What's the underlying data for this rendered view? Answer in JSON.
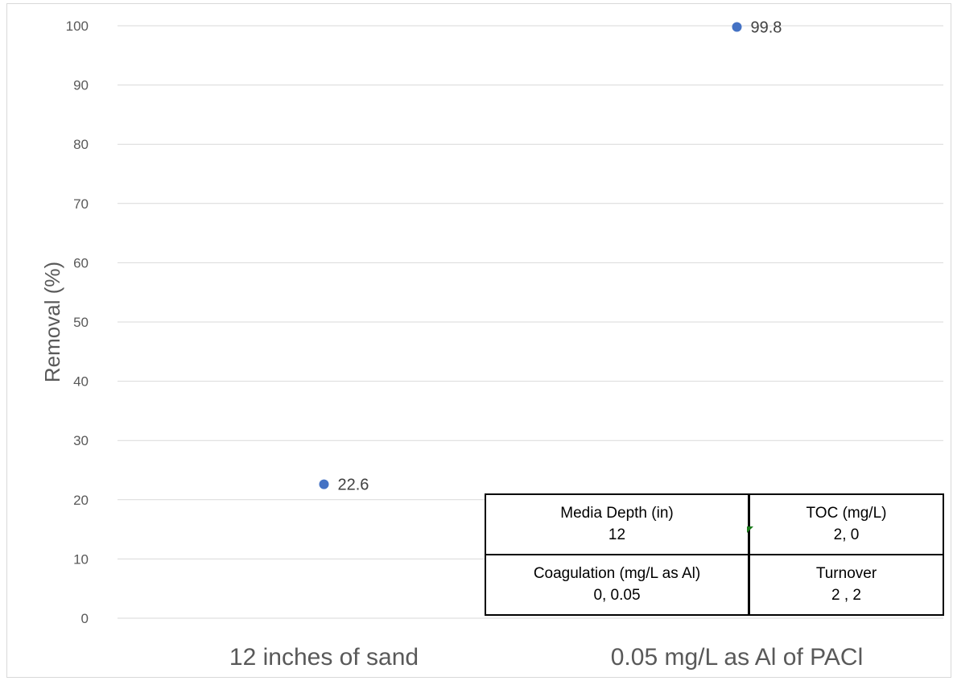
{
  "chart_data": {
    "type": "scatter",
    "categories": [
      "12 inches of sand",
      "0.05 mg/L as Al of PACl"
    ],
    "values": [
      22.6,
      99.8
    ],
    "data_labels": [
      "22.6",
      "99.8"
    ],
    "title": "",
    "xlabel": "",
    "ylabel": "Removal (%)",
    "ylim": [
      0,
      100
    ],
    "yticks": [
      "0",
      "10",
      "20",
      "30",
      "40",
      "50",
      "60",
      "70",
      "80",
      "90",
      "100"
    ],
    "grid": true,
    "marker_color": "#4472c4",
    "gridline_color": "#d9d9d9"
  },
  "parameters_table": {
    "rows": [
      [
        {
          "label": "Media Depth (in)",
          "value": "12"
        },
        {
          "label": "TOC (mg/L)",
          "value": "2, 0"
        }
      ],
      [
        {
          "label": "Coagulation (mg/L as Al)",
          "value": "0,  0.05"
        },
        {
          "label": "Turnover",
          "value": "2 , 2"
        }
      ]
    ]
  }
}
